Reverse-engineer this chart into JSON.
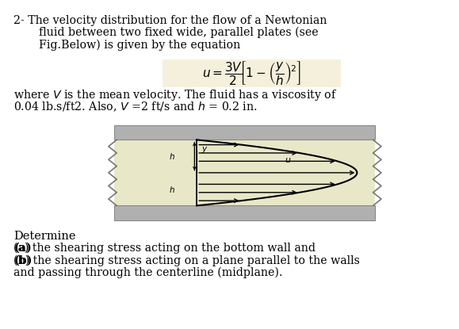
{
  "background_color": "#ffffff",
  "fig_width": 5.79,
  "fig_height": 4.15,
  "dpi": 100,
  "text_color": "#000000",
  "line1": "2- The velocity distribution for the flow of a Newtonian",
  "line2": "fluid between two fixed wide, parallel plates (see",
  "line3": "Fig.Below) is given by the equation",
  "equation": "u = \\frac{3V}{2}\\left[1 - \\left(\\frac{y}{h}\\right)^2\\right]",
  "line4": "where $V$ is the mean velocity. The fluid has a viscosity of",
  "line5": "0.04 lb.s/ft2. Also, $V$ =2 ft/s and $h$ = 0.2 in.",
  "determine": "Determine",
  "part_a": "(a) the shearing stress acting on the bottom wall and",
  "part_b_1": "(b) the shearing stress acting on a plane parallel to the walls",
  "part_b_2": "and passing through the centerline (midplane).",
  "eq_bg_color": "#f5f0dc",
  "figure_bg": "#e8e8c8",
  "plate_color": "#b0b0b0",
  "arrow_color": "#000000"
}
